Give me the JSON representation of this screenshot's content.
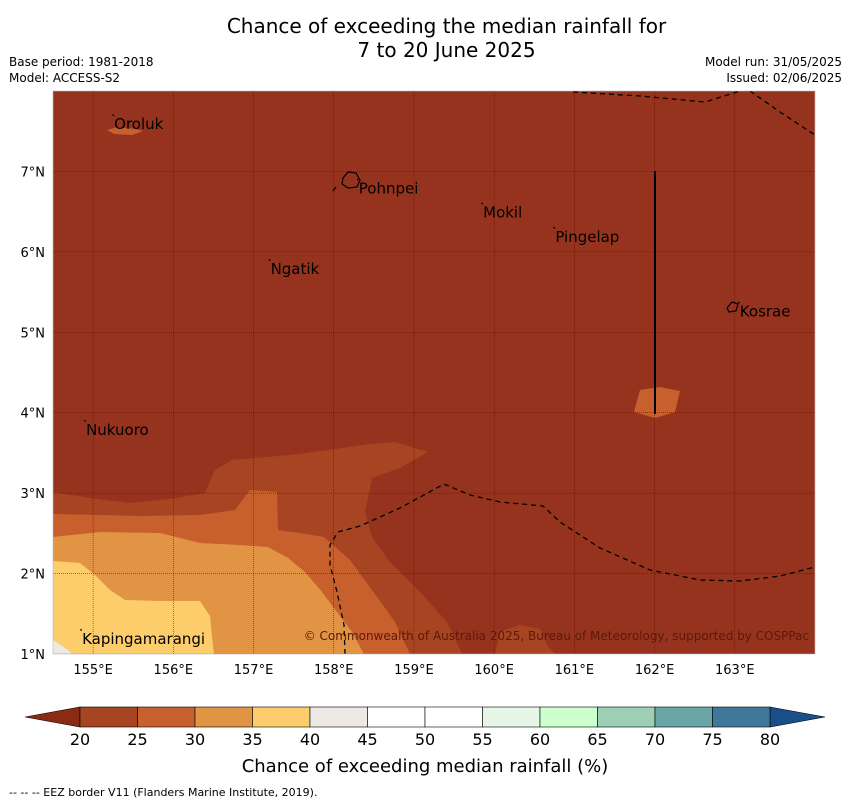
{
  "title": {
    "line1": "Chance of exceeding the median rainfall for",
    "line2": "7 to 20 June 2025"
  },
  "meta": {
    "base_period": "Base period: 1981-2018",
    "model": "Model: ACCESS-S2",
    "model_run": "Model run: 31/05/2025",
    "issued": "Issued: 02/06/2025"
  },
  "map": {
    "lon_range": [
      154.5,
      164.0
    ],
    "lat_range": [
      1.0,
      8.0
    ],
    "lon_ticks": [
      {
        "value": 155,
        "label": "155°E"
      },
      {
        "value": 156,
        "label": "156°E"
      },
      {
        "value": 157,
        "label": "157°E"
      },
      {
        "value": 158,
        "label": "158°E"
      },
      {
        "value": 159,
        "label": "159°E"
      },
      {
        "value": 160,
        "label": "160°E"
      },
      {
        "value": 161,
        "label": "161°E"
      },
      {
        "value": 162,
        "label": "162°E"
      },
      {
        "value": 163,
        "label": "163°E"
      }
    ],
    "lat_ticks": [
      {
        "value": 7,
        "label": "7°N"
      },
      {
        "value": 6,
        "label": "6°N"
      },
      {
        "value": 5,
        "label": "5°N"
      },
      {
        "value": 4,
        "label": "4°N"
      },
      {
        "value": 3,
        "label": "3°N"
      },
      {
        "value": 2,
        "label": "2°N"
      },
      {
        "value": 1,
        "label": "1°N"
      }
    ],
    "places": [
      {
        "name": "Oroluk",
        "lon": 155.25,
        "lat": 7.65
      },
      {
        "name": "Pohnpei",
        "lon": 158.3,
        "lat": 6.85
      },
      {
        "name": "Mokil",
        "lon": 159.85,
        "lat": 6.55
      },
      {
        "name": "Pingelap",
        "lon": 160.75,
        "lat": 6.25
      },
      {
        "name": "Ngatik",
        "lon": 157.2,
        "lat": 5.85
      },
      {
        "name": "Kosrae",
        "lon": 163.05,
        "lat": 5.32
      },
      {
        "name": "Nukuoro",
        "lon": 154.9,
        "lat": 3.85
      },
      {
        "name": "Kapingamarangi",
        "lon": 154.85,
        "lat": 1.25
      }
    ],
    "copyright": "© Commonwealth of Australia 2025, Bureau of Meteorology, supported by COSPPac"
  },
  "colorbar": {
    "title": "Chance of exceeding median rainfall (%)",
    "under_color": "#8c2b14",
    "over_color": "#1a4f8a",
    "bins": [
      {
        "from": 20,
        "to": 25,
        "color": "#a74422"
      },
      {
        "from": 25,
        "to": 30,
        "color": "#c8602e"
      },
      {
        "from": 30,
        "to": 35,
        "color": "#e09444"
      },
      {
        "from": 35,
        "to": 40,
        "color": "#fdcd6b"
      },
      {
        "from": 40,
        "to": 45,
        "color": "#ece9e4"
      },
      {
        "from": 45,
        "to": 50,
        "color": "#ffffff"
      },
      {
        "from": 50,
        "to": 55,
        "color": "#ffffff"
      },
      {
        "from": 55,
        "to": 60,
        "color": "#e6f6e6"
      },
      {
        "from": 60,
        "to": 65,
        "color": "#ccffcc"
      },
      {
        "from": 65,
        "to": 70,
        "color": "#9ccfb3"
      },
      {
        "from": 70,
        "to": 75,
        "color": "#6aa6a6"
      },
      {
        "from": 75,
        "to": 80,
        "color": "#3f7899"
      }
    ],
    "labels": [
      "20",
      "25",
      "30",
      "35",
      "40",
      "45",
      "50",
      "55",
      "60",
      "65",
      "70",
      "75",
      "80"
    ]
  },
  "field_colors": {
    "lt20": "#96331f",
    "c20_25": "#a74422",
    "c25_30": "#c8602e",
    "c30_35": "#e09444",
    "c35_40": "#fdcd6b",
    "c40_45": "#ece9e4"
  },
  "footer": "--  --  -- EEZ border V11 (Flanders Marine Institute, 2019)."
}
